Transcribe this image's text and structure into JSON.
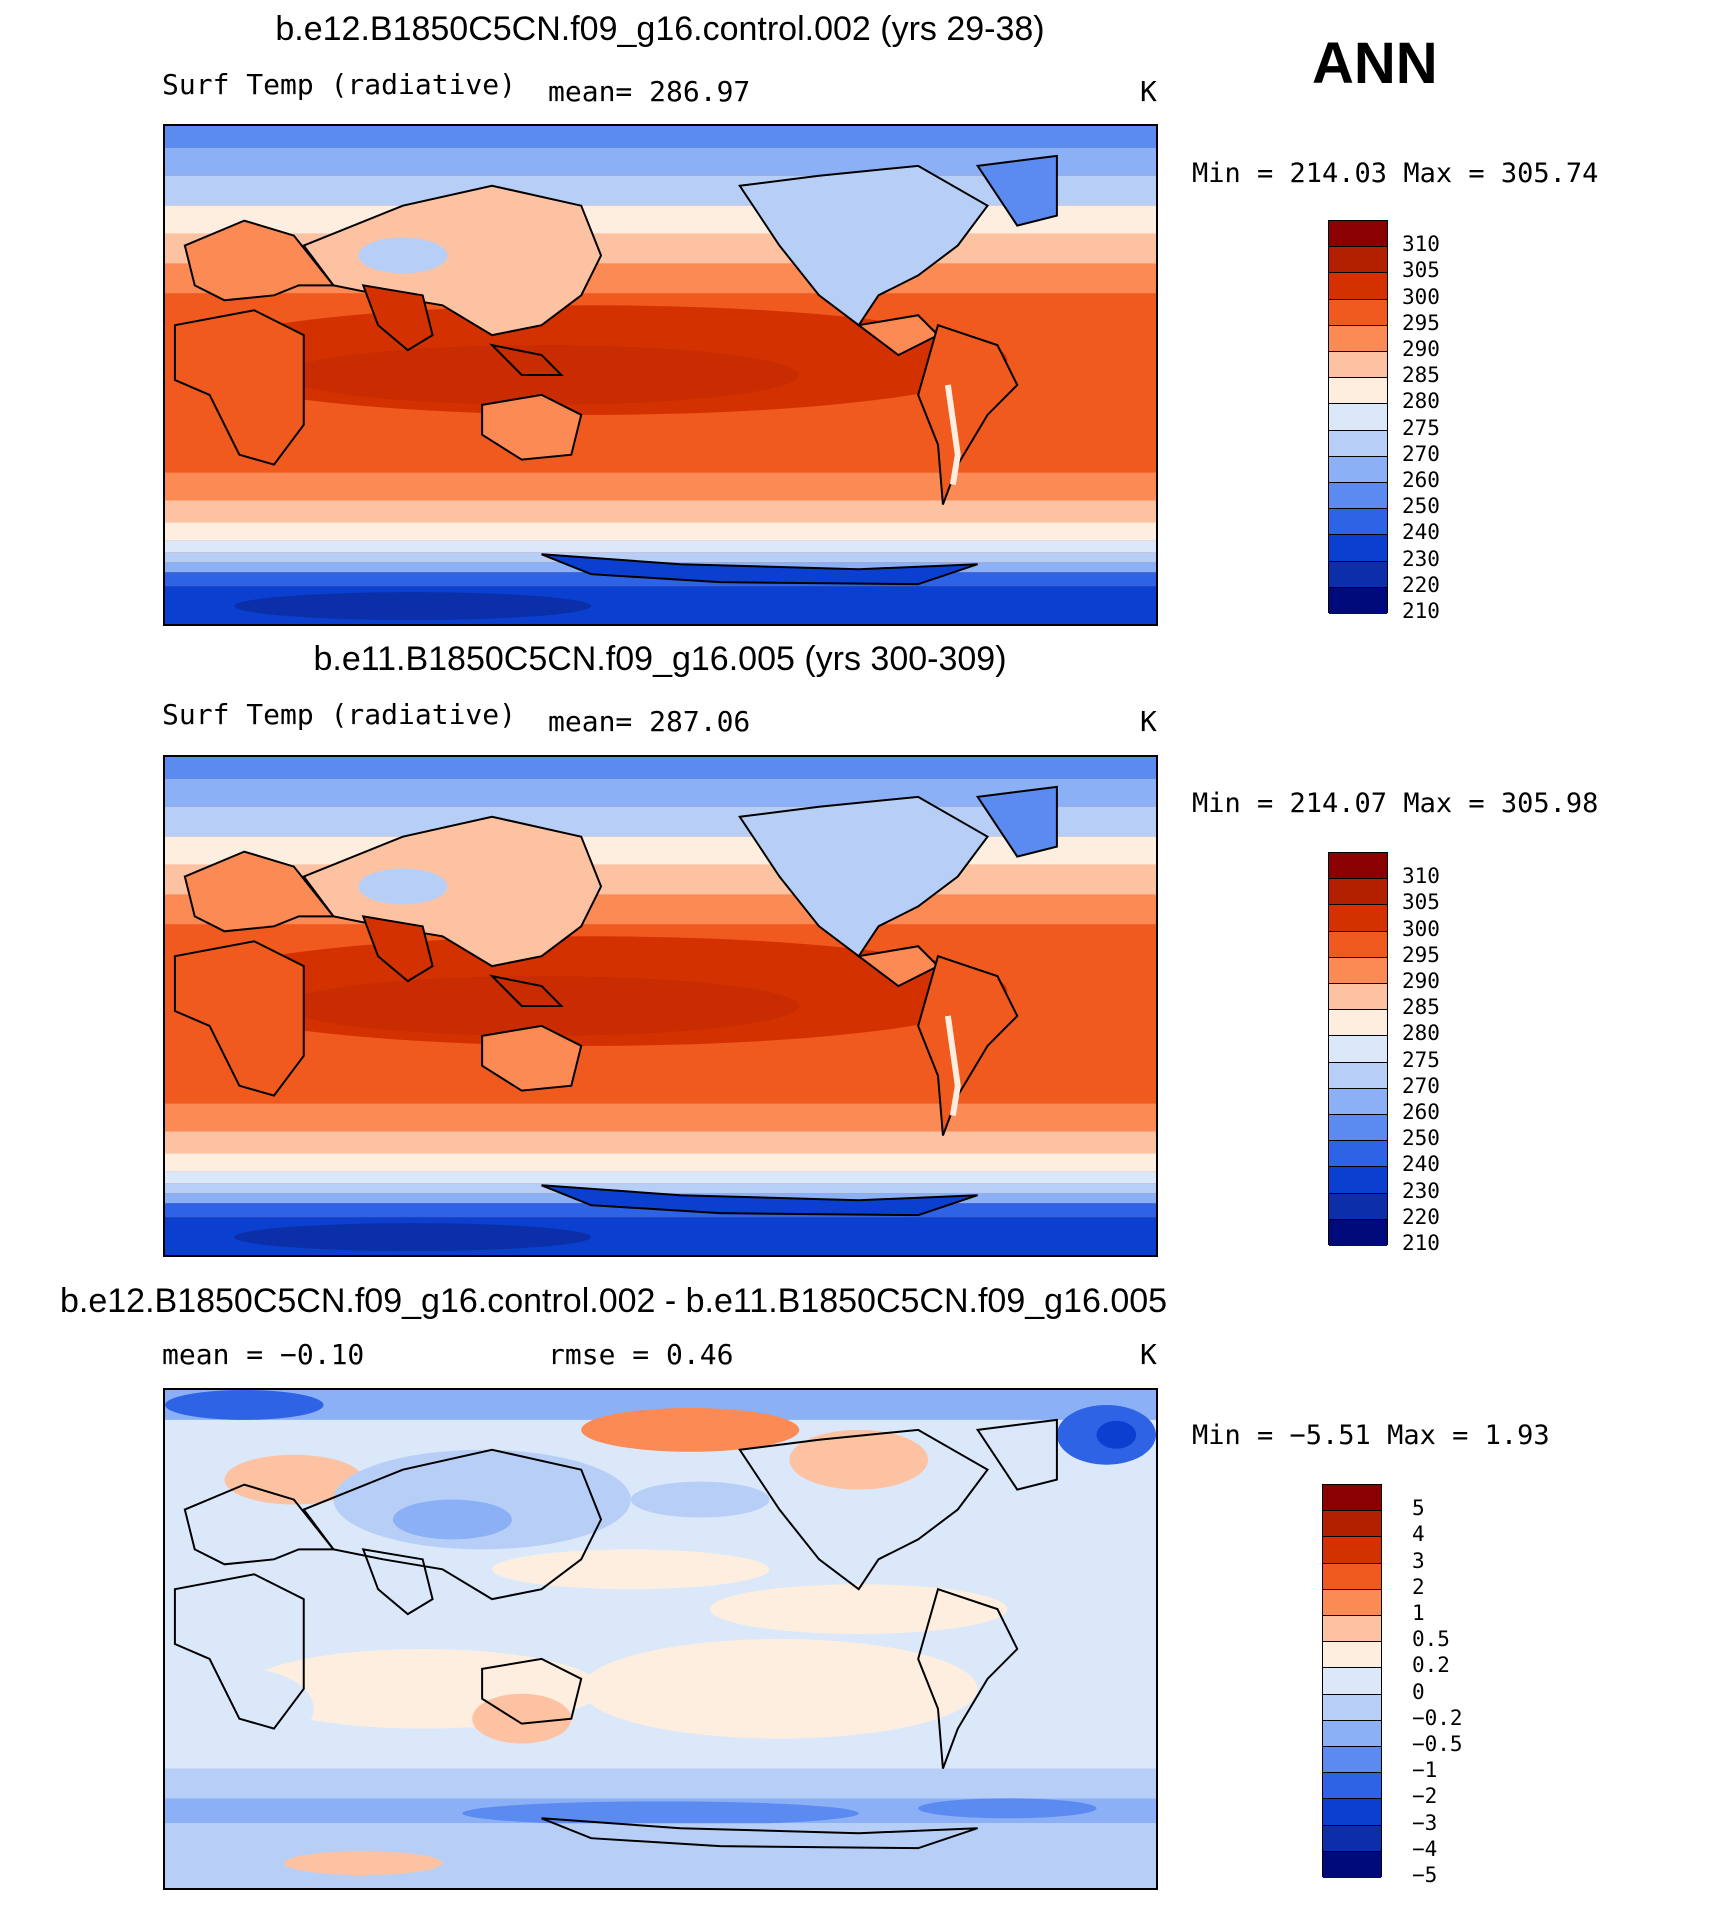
{
  "season": "ANN",
  "panels": [
    {
      "title": "b.e12.B1850C5CN.f09_g16.control.002 (yrs 29-38)",
      "left_label": "Surf Temp (radiative)",
      "mid_label": "mean= 286.97",
      "units": "K",
      "minmax": "Min = 214.03 Max = 305.74",
      "kind": "absolute",
      "colorbar": {
        "colors": [
          "#8b0000",
          "#b22000",
          "#d33200",
          "#f05a1e",
          "#fb8a55",
          "#fdc2a2",
          "#fdeee0",
          "#dbe8fa",
          "#b7cff7",
          "#8cb0f5",
          "#5b8bf0",
          "#2f63e6",
          "#0a3fd0",
          "#0a2fa8",
          "#000a7a"
        ],
        "labels": [
          "310",
          "305",
          "300",
          "295",
          "290",
          "285",
          "280",
          "275",
          "270",
          "260",
          "250",
          "240",
          "230",
          "220",
          "210"
        ]
      }
    },
    {
      "title": "b.e11.B1850C5CN.f09_g16.005 (yrs 300-309)",
      "left_label": "Surf Temp (radiative)",
      "mid_label": "mean= 287.06",
      "units": "K",
      "minmax": "Min = 214.07 Max = 305.98",
      "kind": "absolute",
      "colorbar": {
        "colors": [
          "#8b0000",
          "#b22000",
          "#d33200",
          "#f05a1e",
          "#fb8a55",
          "#fdc2a2",
          "#fdeee0",
          "#dbe8fa",
          "#b7cff7",
          "#8cb0f5",
          "#5b8bf0",
          "#2f63e6",
          "#0a3fd0",
          "#0a2fa8",
          "#000a7a"
        ],
        "labels": [
          "310",
          "305",
          "300",
          "295",
          "290",
          "285",
          "280",
          "275",
          "270",
          "260",
          "250",
          "240",
          "230",
          "220",
          "210"
        ]
      }
    },
    {
      "title": "b.e12.B1850C5CN.f09_g16.control.002 - b.e11.B1850C5CN.f09_g16.005",
      "left_label": "mean =  −0.10",
      "mid_label": "rmse =   0.46",
      "units": "K",
      "minmax": "Min =  −5.51 Max =   1.93",
      "kind": "difference",
      "colorbar": {
        "colors": [
          "#8b0000",
          "#b22000",
          "#d33200",
          "#f05a1e",
          "#fb8a55",
          "#fdc2a2",
          "#fdeee0",
          "#dbe8fa",
          "#b7cff7",
          "#8cb0f5",
          "#5b8bf0",
          "#2f63e6",
          "#0a3fd0",
          "#0a2fa8",
          "#000a7a"
        ],
        "labels": [
          "5",
          "4",
          "3",
          "2",
          "1",
          "0.5",
          "0.2",
          "0",
          "−0.2",
          "−0.5",
          "−1",
          "−2",
          "−3",
          "−4",
          "−5"
        ]
      }
    }
  ]
}
